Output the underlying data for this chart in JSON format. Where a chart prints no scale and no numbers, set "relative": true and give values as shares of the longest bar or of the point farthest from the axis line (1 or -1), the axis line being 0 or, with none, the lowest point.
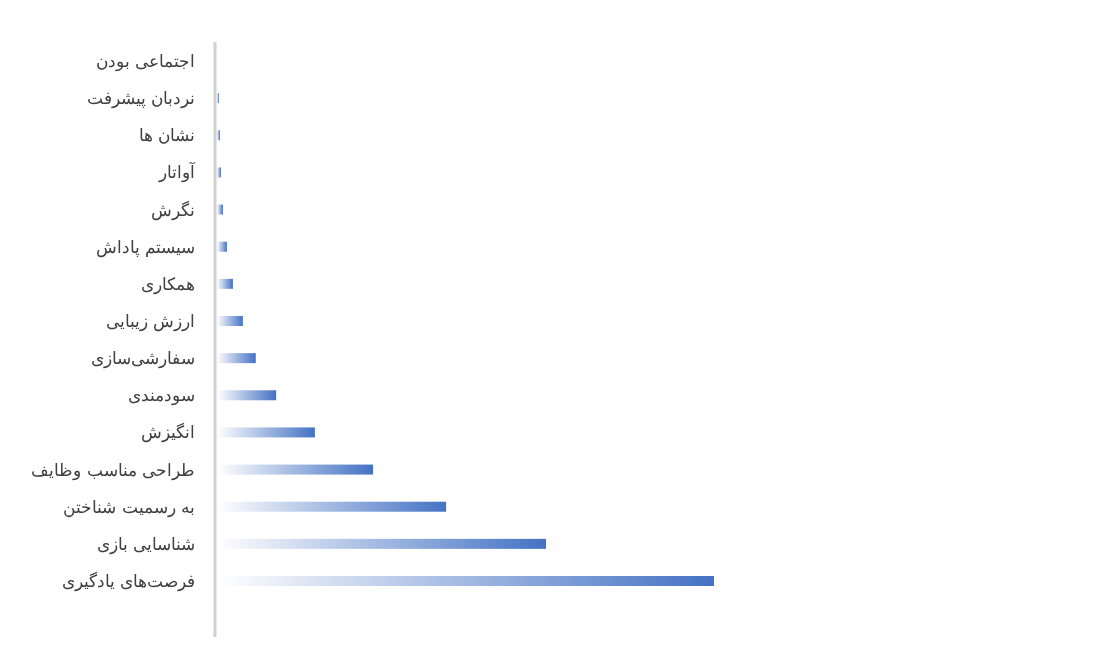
{
  "chart_data": {
    "type": "bar",
    "orientation": "horizontal",
    "relative": true,
    "color": "#4472c4",
    "categories": [
      "اجتماعی بودن",
      "نردبان پیشرفت",
      "نشان ها",
      "آواتار",
      "نگرش",
      "سیستم پاداش",
      "همکاری",
      "ارزش زیبایی",
      "سفارشی‌سازی",
      "سودمندی",
      "انگیزش",
      "طراحی مناسب وظایف",
      "به رسمیت شناختن",
      "شناسایی بازی",
      "فرصت‌های یادگیری"
    ],
    "values": [
      0,
      0.004,
      0.006,
      0.008,
      0.012,
      0.02,
      0.032,
      0.052,
      0.078,
      0.119,
      0.197,
      0.314,
      0.461,
      0.662,
      1
    ]
  }
}
